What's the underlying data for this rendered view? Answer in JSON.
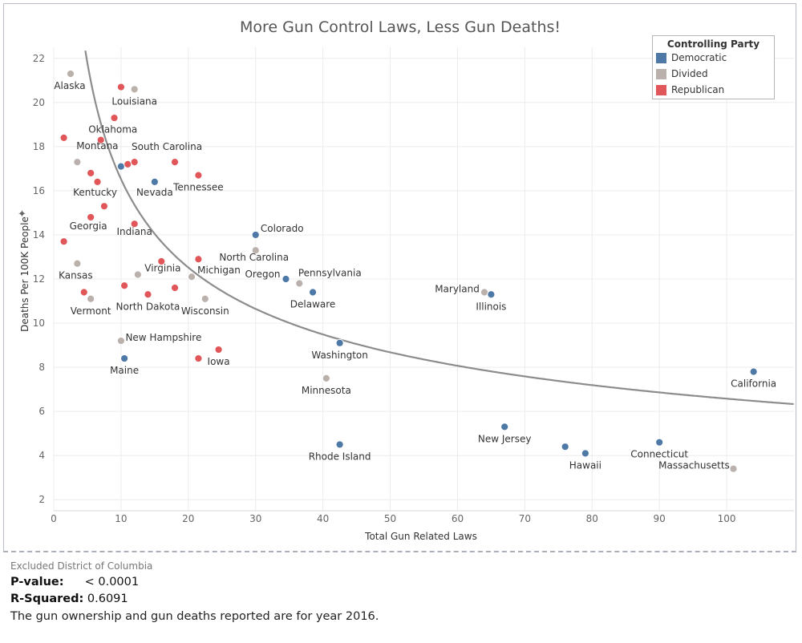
{
  "chart_data": {
    "type": "scatter",
    "title": "More Gun Control Laws, Less Gun Deaths!",
    "xlabel": "Total Gun Related Laws",
    "ylabel": "Deaths Per 100K People",
    "xlim": [
      0,
      110
    ],
    "ylim": [
      1.5,
      22.5
    ],
    "x_ticks": [
      0,
      10,
      20,
      30,
      40,
      50,
      60,
      70,
      80,
      90,
      100
    ],
    "y_ticks": [
      2,
      4,
      6,
      8,
      10,
      12,
      14,
      16,
      18,
      20,
      22
    ],
    "grid": true,
    "legend": {
      "title": "Controlling Party",
      "placement": "top-right",
      "entries": [
        {
          "key": "dem",
          "name": "Democratic",
          "color": "#4e79a7"
        },
        {
          "key": "div",
          "name": "Divided",
          "color": "#bab0ac"
        },
        {
          "key": "rep",
          "name": "Republican",
          "color": "#e15759"
        }
      ]
    },
    "trend": {
      "type": "power",
      "a": 41.5,
      "b": -0.4
    },
    "points": [
      {
        "label": "Alaska",
        "x": 2.5,
        "y": 21.3,
        "party": "div"
      },
      {
        "label": "",
        "x": 10,
        "y": 20.7,
        "party": "rep"
      },
      {
        "label": "Louisiana",
        "x": 12,
        "y": 20.6,
        "party": "div"
      },
      {
        "label": "",
        "x": 9,
        "y": 19.3,
        "party": "rep"
      },
      {
        "label": "Oklahoma",
        "x": 7,
        "y": 18.3,
        "party": "rep"
      },
      {
        "label": "",
        "x": 1.5,
        "y": 18.4,
        "party": "rep"
      },
      {
        "label": "Montana",
        "x": 3.5,
        "y": 17.3,
        "party": "div"
      },
      {
        "label": "",
        "x": 10,
        "y": 17.1,
        "party": "dem"
      },
      {
        "label": "",
        "x": 11,
        "y": 17.2,
        "party": "rep"
      },
      {
        "label": "",
        "x": 12,
        "y": 17.3,
        "party": "rep"
      },
      {
        "label": "South Carolina",
        "x": 18,
        "y": 17.3,
        "party": "rep"
      },
      {
        "label": "Tennessee",
        "x": 21.5,
        "y": 16.7,
        "party": "rep"
      },
      {
        "label": "",
        "x": 5.5,
        "y": 16.8,
        "party": "rep"
      },
      {
        "label": "Kentucky",
        "x": 6.5,
        "y": 16.4,
        "party": "rep"
      },
      {
        "label": "Nevada",
        "x": 15,
        "y": 16.4,
        "party": "dem"
      },
      {
        "label": "",
        "x": 7.5,
        "y": 15.3,
        "party": "rep"
      },
      {
        "label": "Georgia",
        "x": 5.5,
        "y": 14.8,
        "party": "rep"
      },
      {
        "label": "Indiana",
        "x": 12,
        "y": 14.5,
        "party": "rep"
      },
      {
        "label": "",
        "x": 1.5,
        "y": 13.7,
        "party": "rep"
      },
      {
        "label": "Colorado",
        "x": 30,
        "y": 14.0,
        "party": "dem"
      },
      {
        "label": "North Carolina",
        "x": 30,
        "y": 13.3,
        "party": "div"
      },
      {
        "label": "",
        "x": 21.5,
        "y": 12.9,
        "party": "rep"
      },
      {
        "label": "",
        "x": 16,
        "y": 12.8,
        "party": "rep"
      },
      {
        "label": "Kansas",
        "x": 3.5,
        "y": 12.7,
        "party": "div"
      },
      {
        "label": "Virginia",
        "x": 12.5,
        "y": 12.2,
        "party": "div"
      },
      {
        "label": "Michigan",
        "x": 20.5,
        "y": 12.1,
        "party": "div"
      },
      {
        "label": "Oregon",
        "x": 34.5,
        "y": 12.0,
        "party": "dem"
      },
      {
        "label": "Pennsylvania",
        "x": 36.5,
        "y": 11.8,
        "party": "div"
      },
      {
        "label": "",
        "x": 10.5,
        "y": 11.7,
        "party": "rep"
      },
      {
        "label": "",
        "x": 18,
        "y": 11.6,
        "party": "rep"
      },
      {
        "label": "Delaware",
        "x": 38.5,
        "y": 11.4,
        "party": "dem"
      },
      {
        "label": "",
        "x": 4.5,
        "y": 11.4,
        "party": "rep"
      },
      {
        "label": "North Dakota",
        "x": 14,
        "y": 11.3,
        "party": "rep"
      },
      {
        "label": "Vermont",
        "x": 5.5,
        "y": 11.1,
        "party": "div"
      },
      {
        "label": "Wisconsin",
        "x": 22.5,
        "y": 11.1,
        "party": "div"
      },
      {
        "label": "Maryland",
        "x": 64,
        "y": 11.4,
        "party": "div"
      },
      {
        "label": "Illinois",
        "x": 65,
        "y": 11.3,
        "party": "dem"
      },
      {
        "label": "New Hampshire",
        "x": 10,
        "y": 9.2,
        "party": "div"
      },
      {
        "label": "Washington",
        "x": 42.5,
        "y": 9.1,
        "party": "dem"
      },
      {
        "label": "Iowa",
        "x": 24.5,
        "y": 8.8,
        "party": "rep"
      },
      {
        "label": "Maine",
        "x": 10.5,
        "y": 8.4,
        "party": "dem"
      },
      {
        "label": "",
        "x": 21.5,
        "y": 8.4,
        "party": "rep"
      },
      {
        "label": "California",
        "x": 104,
        "y": 7.8,
        "party": "dem"
      },
      {
        "label": "Minnesota",
        "x": 40.5,
        "y": 7.5,
        "party": "div"
      },
      {
        "label": "New Jersey",
        "x": 67,
        "y": 5.3,
        "party": "dem"
      },
      {
        "label": "Connecticut",
        "x": 90,
        "y": 4.6,
        "party": "dem"
      },
      {
        "label": "Rhode Island",
        "x": 42.5,
        "y": 4.5,
        "party": "dem"
      },
      {
        "label": "",
        "x": 76,
        "y": 4.4,
        "party": "dem"
      },
      {
        "label": "Hawaii",
        "x": 79,
        "y": 4.1,
        "party": "dem"
      },
      {
        "label": "Massachusetts",
        "x": 101,
        "y": 3.4,
        "party": "div"
      }
    ]
  },
  "footer": {
    "note": "Excluded District of Columbia",
    "pvalue_label": "P-value:",
    "pvalue": "< 0.0001",
    "rsq_label": "R-Squared:",
    "rsq": "0.6091",
    "caption": "The gun ownership and gun deaths reported are for year 2016."
  }
}
